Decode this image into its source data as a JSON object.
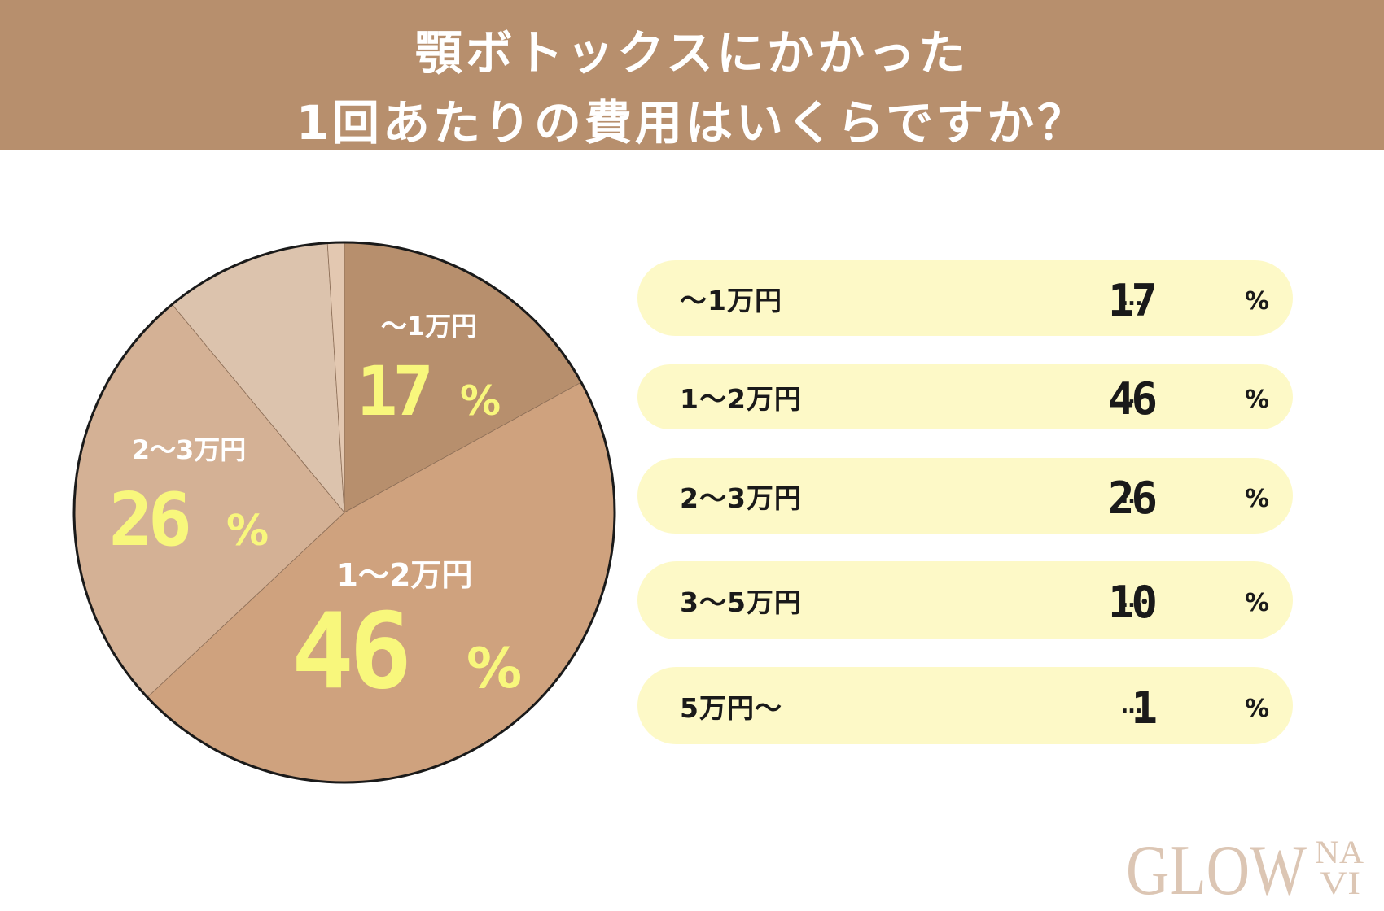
{
  "header": {
    "title_line1": "顎ボトックスにかかった",
    "title_line2": "1回あたりの費用はいくらですか？",
    "bg_color": "#b78f6d"
  },
  "chart_data": {
    "type": "pie",
    "categories": [
      "〜1万円",
      "1〜2万円",
      "2〜3万円",
      "3〜5万円",
      "5万円〜"
    ],
    "values": [
      17,
      46,
      26,
      10,
      1
    ],
    "unit": "%",
    "colors": [
      "#b78f6d",
      "#cfa27e",
      "#d4b195",
      "#dcc3ad",
      "#e3c8b1"
    ],
    "slice_labels": [
      {
        "category": "〜1万円",
        "value": "17",
        "unit": "%"
      },
      {
        "category": "1〜2万円",
        "value": "46",
        "unit": "%"
      },
      {
        "category": "2〜3万円",
        "value": "26",
        "unit": "%"
      }
    ],
    "label_color": "#f8f77c"
  },
  "legend": {
    "separator": "…",
    "unit": "%",
    "items": [
      {
        "label": "〜1万円",
        "value": "17"
      },
      {
        "label": "1〜2万円",
        "value": "46"
      },
      {
        "label": "2〜3万円",
        "value": "26"
      },
      {
        "label": "3〜5万円",
        "value": "10"
      },
      {
        "label": "5万円〜",
        "value": "1"
      }
    ],
    "pill_color": "#fdf9c7"
  },
  "logo": {
    "text": "GLOW",
    "suffix_top": "NA",
    "suffix_bottom": "VI",
    "color": "#dcc6b4"
  }
}
